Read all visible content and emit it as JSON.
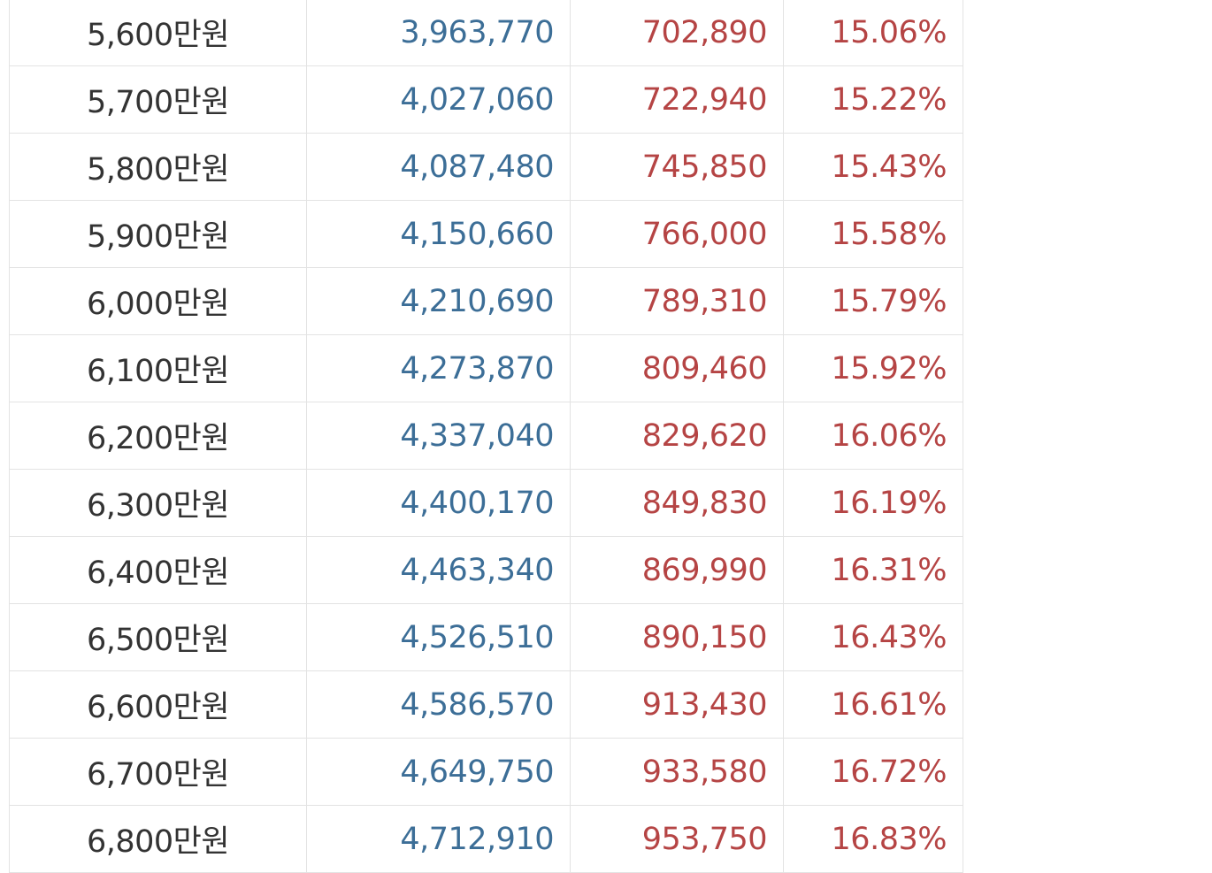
{
  "table": {
    "rows": [
      {
        "salary": "5,600만원",
        "net_monthly": "3,963,770",
        "deduction": "702,890",
        "rate": "15.06%"
      },
      {
        "salary": "5,700만원",
        "net_monthly": "4,027,060",
        "deduction": "722,940",
        "rate": "15.22%"
      },
      {
        "salary": "5,800만원",
        "net_monthly": "4,087,480",
        "deduction": "745,850",
        "rate": "15.43%"
      },
      {
        "salary": "5,900만원",
        "net_monthly": "4,150,660",
        "deduction": "766,000",
        "rate": "15.58%"
      },
      {
        "salary": "6,000만원",
        "net_monthly": "4,210,690",
        "deduction": "789,310",
        "rate": "15.79%"
      },
      {
        "salary": "6,100만원",
        "net_monthly": "4,273,870",
        "deduction": "809,460",
        "rate": "15.92%"
      },
      {
        "salary": "6,200만원",
        "net_monthly": "4,337,040",
        "deduction": "829,620",
        "rate": "16.06%"
      },
      {
        "salary": "6,300만원",
        "net_monthly": "4,400,170",
        "deduction": "849,830",
        "rate": "16.19%"
      },
      {
        "salary": "6,400만원",
        "net_monthly": "4,463,340",
        "deduction": "869,990",
        "rate": "16.31%"
      },
      {
        "salary": "6,500만원",
        "net_monthly": "4,526,510",
        "deduction": "890,150",
        "rate": "16.43%"
      },
      {
        "salary": "6,600만원",
        "net_monthly": "4,586,570",
        "deduction": "913,430",
        "rate": "16.61%"
      },
      {
        "salary": "6,700만원",
        "net_monthly": "4,649,750",
        "deduction": "933,580",
        "rate": "16.72%"
      },
      {
        "salary": "6,800만원",
        "net_monthly": "4,712,910",
        "deduction": "953,750",
        "rate": "16.83%"
      }
    ]
  },
  "colors": {
    "salary_text": "#333333",
    "net_text": "#3c6e97",
    "deduction_text": "#b54444",
    "border": "#e3e3e3"
  }
}
